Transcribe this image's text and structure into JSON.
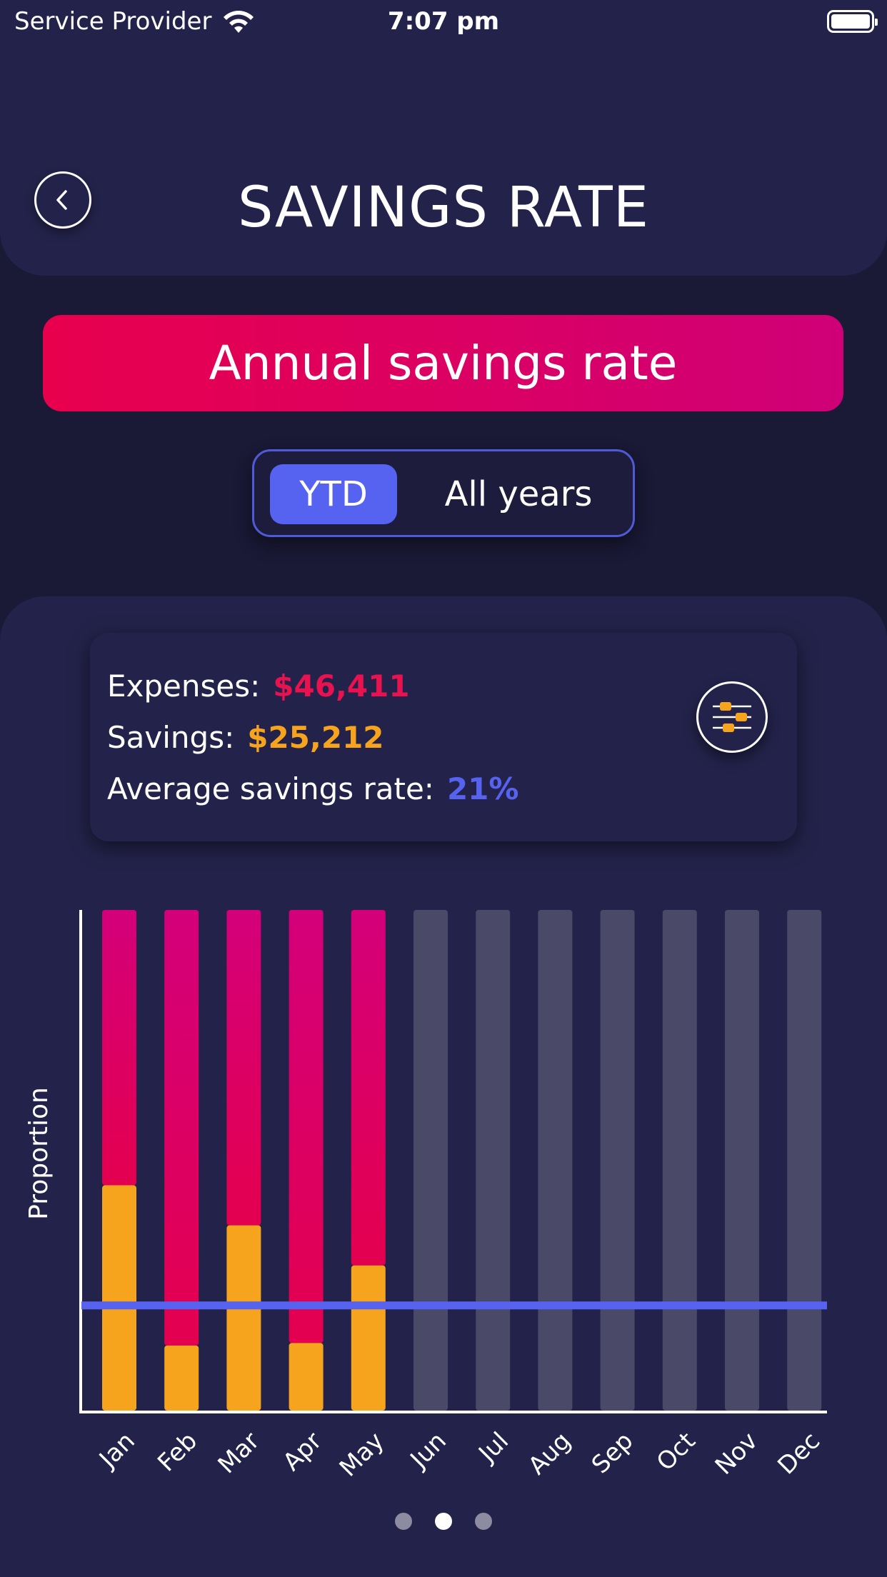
{
  "status_bar": {
    "carrier": "Service Provider",
    "time": "7:07 pm"
  },
  "header": {
    "title": "SAVINGS RATE"
  },
  "banner": {
    "label": "Annual savings rate"
  },
  "segmented": {
    "options": [
      "YTD",
      "All years"
    ],
    "selected": "YTD"
  },
  "summary": {
    "expenses_label": "Expenses:",
    "expenses_value": "$46,411",
    "savings_label": "Savings:",
    "savings_value": "$25,212",
    "rate_label": "Average savings rate:",
    "rate_value": "21%"
  },
  "colors": {
    "background": "#1a1936",
    "panel": "#23224a",
    "expenses": "#e8124f",
    "savings": "#f6a31d",
    "accent": "#5563f0",
    "inactive_bar": "#4a4968"
  },
  "chart_data": {
    "type": "bar",
    "stacked": true,
    "ylabel": "Proportion",
    "xlabel": "",
    "ylim": [
      0,
      1
    ],
    "categories": [
      "Jan",
      "Feb",
      "Mar",
      "Apr",
      "May",
      "Jun",
      "Jul",
      "Aug",
      "Sep",
      "Oct",
      "Nov",
      "Dec"
    ],
    "series": [
      {
        "name": "Savings",
        "values": [
          0.45,
          0.13,
          0.37,
          0.135,
          0.29,
          null,
          null,
          null,
          null,
          null,
          null,
          null
        ]
      },
      {
        "name": "Expenses",
        "values": [
          0.55,
          0.87,
          0.63,
          0.865,
          0.71,
          null,
          null,
          null,
          null,
          null,
          null,
          null
        ]
      }
    ],
    "future_months": [
      "Jun",
      "Jul",
      "Aug",
      "Sep",
      "Oct",
      "Nov",
      "Dec"
    ],
    "average_line": 0.21
  },
  "pagination": {
    "pages": 3,
    "current": 2
  }
}
